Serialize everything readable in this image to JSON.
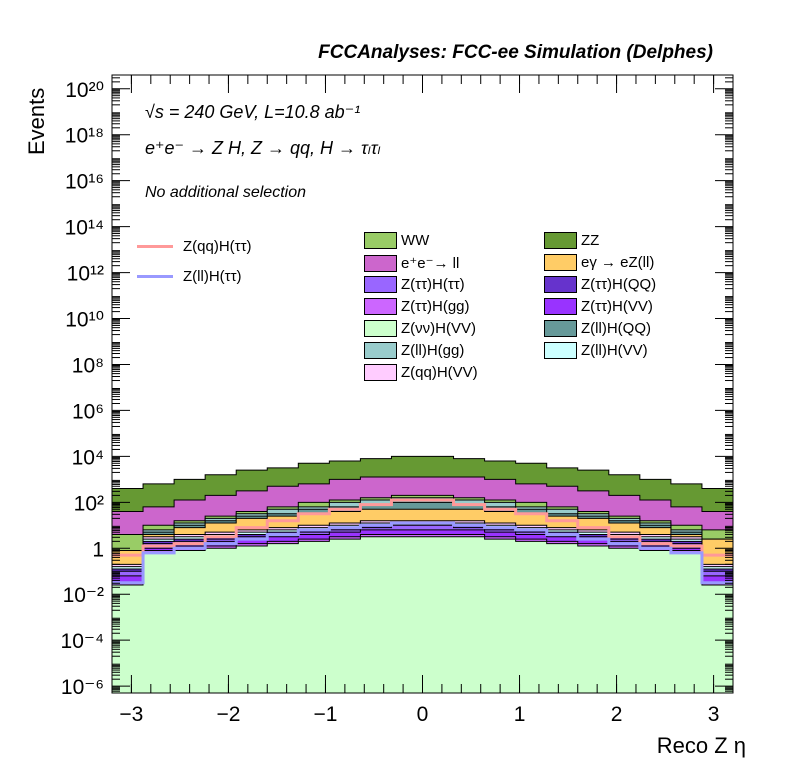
{
  "title": "FCCAnalyses: FCC-ee Simulation (Delphes)",
  "annotations": {
    "energy": "√s = 240 GeV, L=10.8 ab⁻¹",
    "process": "e⁺e⁻ → Z H, Z → qq, H → τₗτₗ",
    "selection": "No additional selection"
  },
  "chart_data": {
    "type": "area",
    "title": "FCCAnalyses: FCC-ee Simulation (Delphes)",
    "xlabel": "Reco Z η",
    "ylabel": "Events",
    "xlim": [
      -3.2,
      3.2
    ],
    "ylim_log10": [
      -6.3,
      20.6
    ],
    "log_scale_y": true,
    "x_ticks": [
      "−3",
      "−2",
      "−1",
      "0",
      "1",
      "2",
      "3"
    ],
    "x_tick_values": [
      -3,
      -2,
      -1,
      0,
      1,
      2,
      3
    ],
    "y_ticks": [
      "10⁻⁶",
      "10⁻⁴",
      "10⁻²",
      "1",
      "10²",
      "10⁴",
      "10⁶",
      "10⁸",
      "10¹⁰",
      "10¹²",
      "10¹⁴",
      "10¹⁶",
      "10¹⁸",
      "10²⁰"
    ],
    "y_tick_exponents": [
      -6,
      -4,
      -2,
      0,
      2,
      4,
      6,
      8,
      10,
      12,
      14,
      16,
      18,
      20
    ],
    "stack_order": [
      "Z(νν)H(VV)",
      "Z(ττ)H(gg)",
      "Z(ττ)H(VV)",
      "Z(ττ)H(ττ)",
      "Z(ττ)H(QQ)",
      "Z(ll)H(VV)",
      "Z(qq)H(VV)",
      "eγ → eZ(ll)",
      "Z(ll)H(QQ)",
      "Z(ll)H(gg)",
      "WW",
      "e⁺e⁻→ ll",
      "ZZ"
    ],
    "stack_log10_tops": {
      "Z(νν)H(VV)": [
        -1.6,
        -0.2,
        -0.1,
        0.0,
        0.1,
        0.2,
        0.3,
        0.4,
        0.5,
        0.5,
        0.5,
        0.5,
        0.4,
        0.3,
        0.2,
        0.1,
        0.0,
        -0.1,
        -0.2,
        -1.6
      ],
      "Z(ττ)H(gg)": [
        -1.5,
        -0.1,
        0.0,
        0.1,
        0.2,
        0.3,
        0.4,
        0.5,
        0.6,
        0.6,
        0.6,
        0.6,
        0.5,
        0.4,
        0.3,
        0.2,
        0.1,
        0.0,
        -0.1,
        -1.5
      ],
      "Z(ττ)H(VV)": [
        -1.2,
        0.0,
        0.1,
        0.3,
        0.4,
        0.5,
        0.6,
        0.7,
        0.8,
        0.8,
        0.8,
        0.8,
        0.7,
        0.6,
        0.5,
        0.4,
        0.3,
        0.1,
        0.0,
        -1.2
      ],
      "Z(ττ)H(ττ)": [
        -1.0,
        0.2,
        0.3,
        0.4,
        0.5,
        0.6,
        0.7,
        0.8,
        0.9,
        1.0,
        1.0,
        0.9,
        0.8,
        0.7,
        0.6,
        0.5,
        0.4,
        0.3,
        0.2,
        -1.0
      ],
      "Z(ττ)H(QQ)": [
        -0.9,
        0.3,
        0.4,
        0.5,
        0.6,
        0.7,
        0.8,
        0.9,
        1.0,
        1.0,
        1.0,
        1.0,
        0.9,
        0.8,
        0.7,
        0.6,
        0.5,
        0.4,
        0.3,
        -0.9
      ],
      "Z(ll)H(VV)": [
        -0.8,
        0.4,
        0.5,
        0.6,
        0.7,
        0.8,
        0.9,
        1.0,
        1.1,
        1.1,
        1.1,
        1.1,
        1.0,
        0.9,
        0.8,
        0.7,
        0.6,
        0.5,
        0.4,
        -0.8
      ],
      "Z(qq)H(VV)": [
        -0.7,
        0.5,
        0.6,
        0.7,
        0.8,
        0.9,
        1.0,
        1.1,
        1.2,
        1.2,
        1.2,
        1.2,
        1.1,
        1.0,
        0.9,
        0.8,
        0.7,
        0.6,
        0.5,
        -0.7
      ],
      "eγ → eZ(ll)": [
        -0.1,
        0.6,
        0.9,
        1.1,
        1.3,
        1.4,
        1.5,
        1.6,
        1.7,
        1.7,
        1.7,
        1.7,
        1.6,
        1.5,
        1.4,
        1.3,
        1.1,
        0.9,
        0.6,
        0.4
      ],
      "Z(ll)H(QQ)": [
        -0.1,
        0.7,
        1.0,
        1.2,
        1.4,
        1.5,
        1.7,
        1.8,
        1.9,
        2.0,
        2.0,
        1.9,
        1.8,
        1.7,
        1.5,
        1.4,
        1.2,
        1.0,
        0.7,
        0.4
      ],
      "Z(ll)H(gg)": [
        -0.1,
        0.8,
        1.1,
        1.3,
        1.5,
        1.7,
        1.8,
        2.0,
        2.1,
        2.2,
        2.2,
        2.1,
        2.0,
        1.8,
        1.7,
        1.5,
        1.3,
        1.1,
        0.8,
        0.4
      ],
      "WW": [
        0.6,
        1.0,
        1.2,
        1.4,
        1.6,
        1.8,
        2.0,
        2.1,
        2.2,
        2.3,
        2.3,
        2.2,
        2.1,
        2.0,
        1.8,
        1.6,
        1.4,
        1.2,
        1.0,
        0.8
      ],
      "e⁺e⁻→ ll": [
        1.6,
        1.8,
        2.1,
        2.3,
        2.5,
        2.7,
        2.8,
        3.0,
        3.1,
        3.1,
        3.1,
        3.1,
        3.0,
        2.8,
        2.7,
        2.5,
        2.3,
        2.1,
        1.8,
        1.6
      ],
      "ZZ": [
        2.6,
        2.8,
        3.0,
        3.2,
        3.4,
        3.5,
        3.7,
        3.8,
        3.9,
        4.0,
        4.0,
        3.9,
        3.8,
        3.7,
        3.5,
        3.4,
        3.2,
        3.0,
        2.8,
        2.6
      ]
    },
    "signal_lines": [
      {
        "name": "Z(qq)H(ττ)",
        "color": "#ff9999",
        "log10": [
          -0.3,
          0.1,
          0.2,
          0.5,
          0.9,
          1.2,
          1.5,
          1.7,
          1.9,
          2.1,
          2.1,
          1.9,
          1.7,
          1.5,
          1.2,
          0.9,
          0.5,
          0.2,
          0.1,
          -0.3
        ]
      },
      {
        "name": "Z(ll)H(ττ)",
        "color": "#9999ff",
        "log10": [
          -1.5,
          -0.2,
          0.0,
          0.2,
          0.4,
          0.6,
          0.8,
          0.9,
          1.0,
          1.1,
          1.1,
          1.0,
          0.9,
          0.8,
          0.6,
          0.4,
          0.2,
          0.0,
          -0.2,
          -1.5
        ]
      }
    ],
    "x_bin_edges": [
      -3.2,
      -2.88,
      -2.56,
      -2.24,
      -1.92,
      -1.6,
      -1.28,
      -0.96,
      -0.64,
      -0.32,
      0.0,
      0.32,
      0.64,
      0.96,
      1.28,
      1.6,
      1.92,
      2.24,
      2.56,
      2.88,
      3.2
    ],
    "legend": {
      "lines": [
        {
          "label": "Z(qq)H(ττ)",
          "color": "#ff9999"
        },
        {
          "label": "Z(ll)H(ττ)",
          "color": "#9999ff"
        }
      ],
      "col1": [
        {
          "label": "WW",
          "color": "#99cc66"
        },
        {
          "label": "e⁺e⁻→ ll",
          "color": "#cc66cc"
        },
        {
          "label": "Z(ττ)H(ττ)",
          "color": "#9966ff"
        },
        {
          "label": "Z(ττ)H(gg)",
          "color": "#cc66ff"
        },
        {
          "label": "Z(νν)H(VV)",
          "color": "#ccffcc"
        },
        {
          "label": "Z(ll)H(gg)",
          "color": "#99cccc"
        },
        {
          "label": "Z(qq)H(VV)",
          "color": "#ffccff"
        }
      ],
      "col2": [
        {
          "label": "ZZ",
          "color": "#669933"
        },
        {
          "label": "eγ → eZ(ll)",
          "color": "#ffcc66"
        },
        {
          "label": "Z(ττ)H(QQ)",
          "color": "#6633cc"
        },
        {
          "label": "Z(ττ)H(VV)",
          "color": "#9933ff"
        },
        {
          "label": "Z(ll)H(QQ)",
          "color": "#669999"
        },
        {
          "label": "Z(ll)H(VV)",
          "color": "#ccffff"
        }
      ]
    },
    "grid": false
  }
}
